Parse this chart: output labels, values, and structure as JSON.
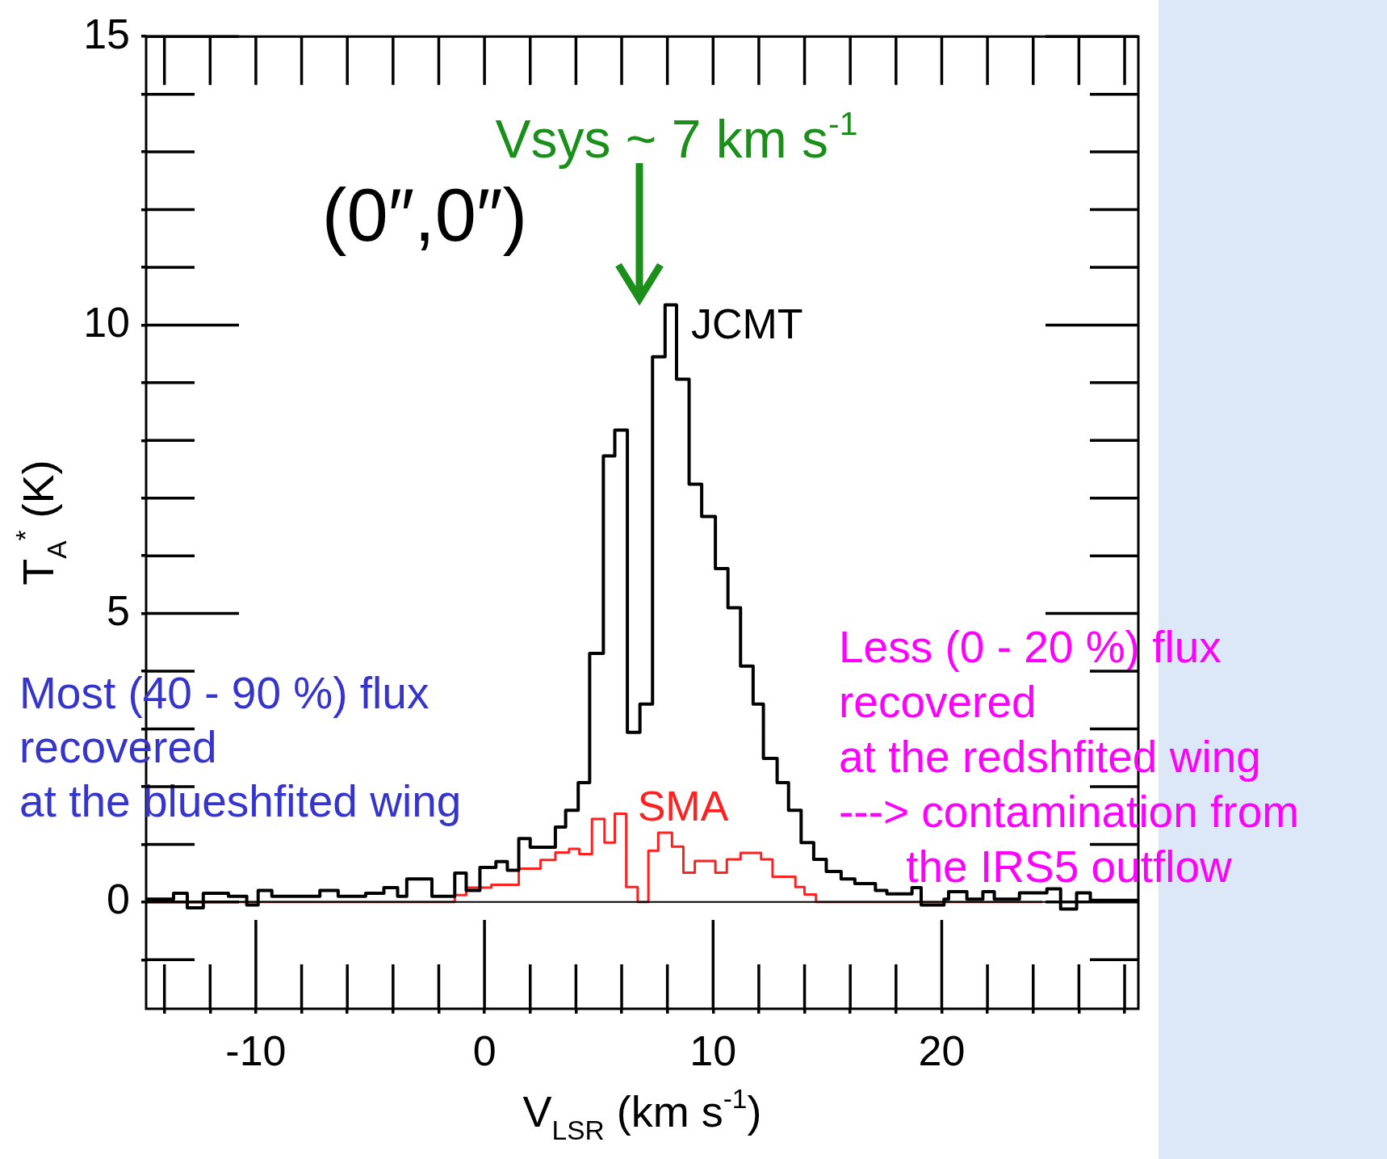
{
  "chart_data": {
    "type": "step",
    "xlabel": "V$_{LSR}$ (km s$^{-1}$)",
    "ylabel": "T$_{A}$$^{*}$ (K)",
    "xlim": [
      -14.8,
      28.6
    ],
    "ylim": [
      -1.85,
      15
    ],
    "xticks": [
      {
        "value": -14,
        "label": null
      },
      {
        "value": -12,
        "label": null
      },
      -10,
      {
        "value": -8,
        "label": null
      },
      {
        "value": -6,
        "label": null
      },
      {
        "value": -4,
        "label": null
      },
      {
        "value": -2,
        "label": null
      },
      0,
      {
        "value": 2,
        "label": null
      },
      {
        "value": 4,
        "label": null
      },
      {
        "value": 6,
        "label": null
      },
      {
        "value": 8,
        "label": null
      },
      10,
      {
        "value": 12,
        "label": null
      },
      {
        "value": 14,
        "label": null
      },
      {
        "value": 16,
        "label": null
      },
      {
        "value": 18,
        "label": null
      },
      20,
      {
        "value": 22,
        "label": null
      },
      {
        "value": 24,
        "label": null
      },
      {
        "value": 26,
        "label": null
      },
      {
        "value": 28,
        "label": null
      }
    ],
    "yticks": [
      {
        "value": -1,
        "label": null
      },
      0,
      {
        "value": 1,
        "label": null
      },
      {
        "value": 2,
        "label": null
      },
      {
        "value": 3,
        "label": null
      },
      {
        "value": 4,
        "label": null
      },
      5,
      {
        "value": 6,
        "label": null
      },
      {
        "value": 7,
        "label": null
      },
      {
        "value": 8,
        "label": null
      },
      {
        "value": 9,
        "label": null
      },
      10,
      {
        "value": 11,
        "label": null
      },
      {
        "value": 12,
        "label": null
      },
      {
        "value": 13,
        "label": null
      },
      {
        "value": 14,
        "label": null
      },
      15
    ],
    "series": [
      {
        "name": "JCMT",
        "color": "#000000",
        "x": [
          -14.8,
          -13.6,
          -13.0,
          -12.3,
          -11.2,
          -10.4,
          -9.9,
          -9.3,
          -7.2,
          -6.4,
          -5.2,
          -4.4,
          -3.8,
          -3.4,
          -2.3,
          -1.3,
          -0.8,
          -0.2,
          0.5,
          1.0,
          1.5,
          2.0,
          3.1,
          3.55,
          4.1,
          4.6,
          5.2,
          5.7,
          6.25,
          6.8,
          7.35,
          7.9,
          8.4,
          8.95,
          9.5,
          10.1,
          10.65,
          11.2,
          11.75,
          12.2,
          12.8,
          13.3,
          13.85,
          14.4,
          14.95,
          15.6,
          16.2,
          17.1,
          17.6,
          18.7,
          19.1,
          20.1,
          20.3,
          21.1,
          21.8,
          22.3,
          23.4,
          24.6,
          25.2,
          25.9,
          26.5,
          28.6
        ],
        "values": [
          0.05,
          0.15,
          -0.1,
          0.15,
          0.1,
          -0.05,
          0.2,
          0.1,
          0.2,
          0.1,
          0.15,
          0.25,
          0.1,
          0.4,
          0.1,
          0.5,
          0.2,
          0.6,
          0.7,
          0.55,
          1.1,
          0.95,
          1.3,
          1.59,
          2.07,
          4.31,
          7.73,
          8.18,
          2.94,
          3.43,
          9.45,
          10.35,
          9.06,
          7.24,
          6.68,
          5.78,
          5.1,
          4.09,
          3.43,
          2.49,
          2.07,
          1.59,
          1.03,
          0.74,
          0.53,
          0.4,
          0.32,
          0.2,
          0.14,
          0.25,
          -0.05,
          0.05,
          0.18,
          0.05,
          0.18,
          0.05,
          0.16,
          0.23,
          -0.12,
          0.16,
          0.03,
          0.03
        ]
      },
      {
        "name": "SMA",
        "color": "#ff2020",
        "x": [
          -14.8,
          -1.3,
          -0.8,
          0.3,
          1.5,
          2.45,
          3.1,
          3.7,
          4.15,
          4.7,
          5.25,
          5.7,
          6.2,
          6.7,
          7.17,
          7.6,
          8.2,
          8.7,
          9.2,
          10.1,
          10.6,
          11.2,
          12.1,
          12.6,
          13.6,
          14.0,
          14.5,
          24.4
        ],
        "values": [
          0,
          0.12,
          0.25,
          0.3,
          0.58,
          0.73,
          0.86,
          0.92,
          0.83,
          1.44,
          1.03,
          1.53,
          0.26,
          0,
          0.89,
          1.2,
          0.96,
          0.51,
          0.71,
          0.51,
          0.74,
          0.85,
          0.74,
          0.44,
          0.26,
          0.13,
          0,
          0
        ]
      }
    ],
    "ref_lines": [
      {
        "axis": "y",
        "value": 0,
        "color": "#000000"
      }
    ],
    "annotations": [
      "(0″,0″)",
      "Vsys ~ 7 km s$^{-1}$",
      "Most (40 - 90 %) flux\nrecovered\nat the blueshfited wing",
      "Less (0 - 20 %) flux\nrecovered\nat the redshfited wing\n---> contamination from\nthe IRS5 outflow"
    ],
    "marker": "none",
    "legend": false
  }
}
